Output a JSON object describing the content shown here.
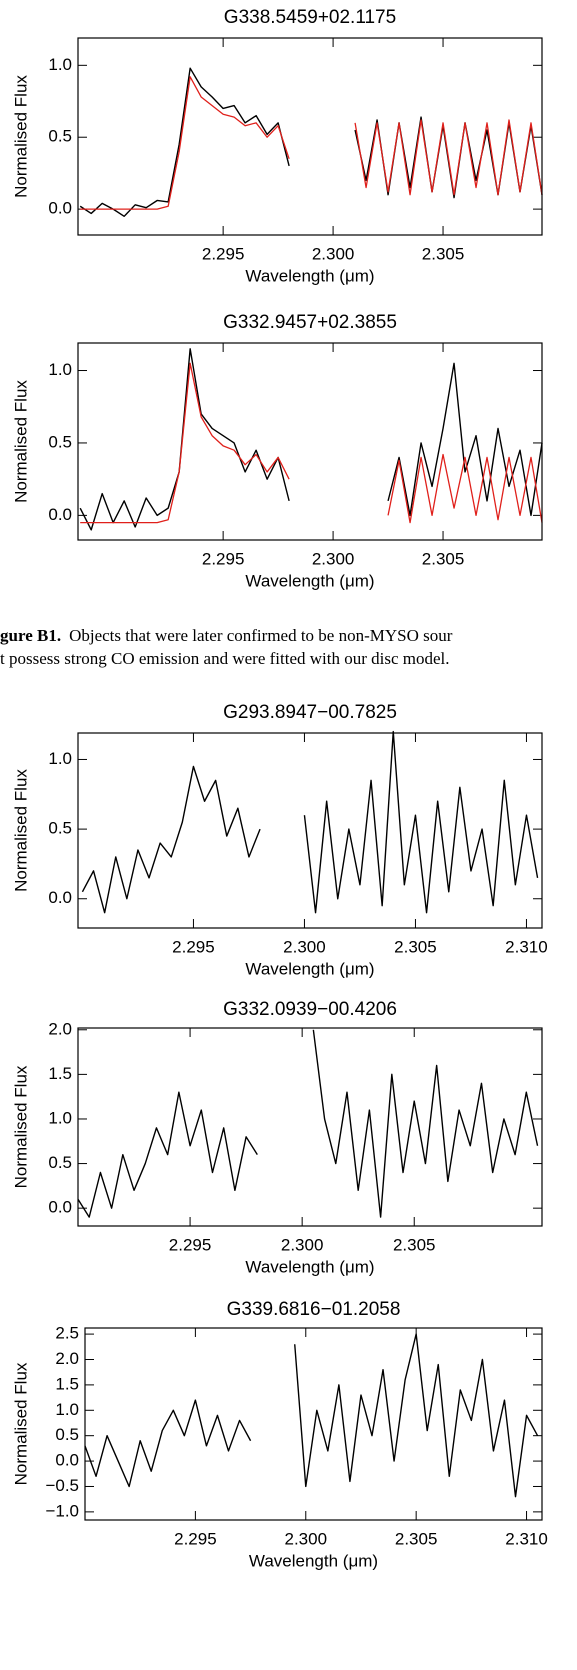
{
  "chart_data": [
    {
      "type": "line",
      "title": "G338.5459+02.1175",
      "xlabel": "Wavelength (μm)",
      "ylabel": "Normalised Flux",
      "x": [
        2.2885,
        2.289,
        2.2895,
        2.29,
        2.2905,
        2.291,
        2.2915,
        2.292,
        2.2925,
        2.293,
        2.2935,
        2.294,
        2.2945,
        2.295,
        2.2955,
        2.296,
        2.2965,
        2.297,
        2.2975,
        2.298,
        2.2985,
        2.299,
        2.2995,
        2.3,
        2.3005,
        2.301,
        2.3015,
        2.302,
        2.3025,
        2.303,
        2.3035,
        2.304,
        2.3045,
        2.305,
        2.3055,
        2.306,
        2.3065,
        2.307,
        2.3075,
        2.308,
        2.3085,
        2.309,
        2.3095
      ],
      "series": [
        {
          "color": "#000000",
          "values": [
            0.02,
            -0.03,
            0.04,
            0.0,
            -0.05,
            0.03,
            0.01,
            0.06,
            0.05,
            0.45,
            0.98,
            0.85,
            0.78,
            0.7,
            0.72,
            0.6,
            0.65,
            0.52,
            0.6,
            0.3,
            null,
            null,
            null,
            null,
            null,
            0.55,
            0.2,
            0.62,
            0.1,
            0.6,
            0.15,
            0.64,
            0.12,
            0.58,
            0.08,
            0.6,
            0.2,
            0.55,
            0.1,
            0.6,
            0.12,
            0.58,
            0.1
          ]
        },
        {
          "color": "#e0201b",
          "values": [
            0.0,
            0.0,
            0.0,
            0.0,
            0.0,
            0.0,
            0.0,
            0.0,
            0.02,
            0.4,
            0.92,
            0.78,
            0.72,
            0.66,
            0.64,
            0.58,
            0.6,
            0.5,
            0.58,
            0.35,
            null,
            null,
            null,
            null,
            null,
            0.6,
            0.15,
            0.6,
            0.12,
            0.6,
            0.1,
            0.62,
            0.12,
            0.6,
            0.1,
            0.6,
            0.15,
            0.6,
            0.1,
            0.62,
            0.12,
            0.6,
            0.1
          ]
        }
      ],
      "xlim": [
        2.2884,
        2.3095
      ],
      "ylim": [
        -0.18,
        1.19
      ],
      "xticks": [
        2.295,
        {
          "value": 2.3,
          "label": "2.300"
        },
        2.305
      ],
      "yticks": [
        {
          "value": 0,
          "label": "0.0"
        },
        0.5,
        {
          "value": 1,
          "label": "1.0"
        }
      ]
    },
    {
      "type": "line",
      "title": "G332.9457+02.3855",
      "xlabel": "Wavelength (μm)",
      "ylabel": "Normalised Flux",
      "x": [
        2.2885,
        2.289,
        2.2895,
        2.29,
        2.2905,
        2.291,
        2.2915,
        2.292,
        2.2925,
        2.293,
        2.2935,
        2.294,
        2.2945,
        2.295,
        2.2955,
        2.296,
        2.2965,
        2.297,
        2.2975,
        2.298,
        2.2985,
        2.299,
        2.2995,
        2.3,
        2.3005,
        2.301,
        2.3015,
        2.302,
        2.3025,
        2.303,
        2.3035,
        2.304,
        2.3045,
        2.305,
        2.3055,
        2.306,
        2.3065,
        2.307,
        2.3075,
        2.308,
        2.3085,
        2.309,
        2.3095
      ],
      "series": [
        {
          "color": "#000000",
          "values": [
            0.05,
            -0.1,
            0.15,
            -0.05,
            0.1,
            -0.08,
            0.12,
            0.0,
            0.05,
            0.3,
            1.15,
            0.7,
            0.6,
            0.55,
            0.5,
            0.3,
            0.45,
            0.25,
            0.4,
            0.1,
            null,
            null,
            null,
            null,
            null,
            null,
            null,
            null,
            0.1,
            0.4,
            0.0,
            0.5,
            0.2,
            0.6,
            1.05,
            0.3,
            0.55,
            0.1,
            0.6,
            0.2,
            0.45,
            0.0,
            0.5
          ]
        },
        {
          "color": "#e0201b",
          "values": [
            -0.05,
            -0.05,
            -0.05,
            -0.05,
            -0.05,
            -0.05,
            -0.05,
            -0.05,
            -0.03,
            0.3,
            1.05,
            0.68,
            0.55,
            0.48,
            0.45,
            0.35,
            0.42,
            0.3,
            0.4,
            0.25,
            null,
            null,
            null,
            null,
            null,
            null,
            null,
            null,
            0.0,
            0.38,
            -0.05,
            0.4,
            0.0,
            0.42,
            0.05,
            0.4,
            0.0,
            0.4,
            -0.03,
            0.4,
            0.0,
            0.4,
            -0.05
          ]
        }
      ],
      "xlim": [
        2.2884,
        2.3095
      ],
      "ylim": [
        -0.17,
        1.19
      ],
      "xticks": [
        2.295,
        {
          "value": 2.3,
          "label": "2.300"
        },
        2.305
      ],
      "yticks": [
        {
          "value": 0,
          "label": "0.0"
        },
        0.5,
        {
          "value": 1,
          "label": "1.0"
        }
      ]
    },
    {
      "type": "line",
      "title": "G293.8947−00.7825",
      "xlabel": "Wavelength (μm)",
      "ylabel": "Normalised Flux",
      "x": [
        2.29,
        2.2905,
        2.291,
        2.2915,
        2.292,
        2.2925,
        2.293,
        2.2935,
        2.294,
        2.2945,
        2.295,
        2.2955,
        2.296,
        2.2965,
        2.297,
        2.2975,
        2.298,
        2.2985,
        2.299,
        2.2995,
        2.3,
        2.3005,
        2.301,
        2.3015,
        2.302,
        2.3025,
        2.303,
        2.3035,
        2.304,
        2.3045,
        2.305,
        2.3055,
        2.306,
        2.3065,
        2.307,
        2.3075,
        2.308,
        2.3085,
        2.309,
        2.3095,
        2.31,
        2.3105
      ],
      "series": [
        {
          "color": "#000000",
          "values": [
            0.05,
            0.2,
            -0.1,
            0.3,
            0.0,
            0.35,
            0.15,
            0.4,
            0.3,
            0.55,
            0.95,
            0.7,
            0.85,
            0.45,
            0.65,
            0.3,
            0.5,
            null,
            null,
            null,
            0.6,
            -0.1,
            0.7,
            0.0,
            0.5,
            0.1,
            0.85,
            -0.05,
            1.2,
            0.1,
            0.6,
            -0.1,
            0.7,
            0.05,
            0.8,
            0.2,
            0.5,
            -0.05,
            0.85,
            0.1,
            0.6,
            0.15
          ]
        }
      ],
      "xlim": [
        2.2898,
        2.3107
      ],
      "ylim": [
        -0.21,
        1.19
      ],
      "xticks": [
        2.295,
        {
          "value": 2.3,
          "label": "2.300"
        },
        2.305,
        {
          "value": 2.31,
          "label": "2.310"
        }
      ],
      "yticks": [
        {
          "value": 0,
          "label": "0.0"
        },
        0.5,
        {
          "value": 1,
          "label": "1.0"
        }
      ]
    },
    {
      "type": "line",
      "title": "G332.0939−00.4206",
      "xlabel": "Wavelength (μm)",
      "ylabel": "Normalised Flux",
      "x": [
        2.29,
        2.2905,
        2.291,
        2.2915,
        2.292,
        2.2925,
        2.293,
        2.2935,
        2.294,
        2.2945,
        2.295,
        2.2955,
        2.296,
        2.2965,
        2.297,
        2.2975,
        2.298,
        2.2985,
        2.299,
        2.2995,
        2.3,
        2.3005,
        2.301,
        2.3015,
        2.302,
        2.3025,
        2.303,
        2.3035,
        2.304,
        2.3045,
        2.305,
        2.3055,
        2.306,
        2.3065,
        2.307,
        2.3075,
        2.308,
        2.3085,
        2.309,
        2.3095,
        2.31,
        2.3105
      ],
      "series": [
        {
          "color": "#000000",
          "values": [
            0.1,
            -0.1,
            0.4,
            0.0,
            0.6,
            0.2,
            0.5,
            0.9,
            0.6,
            1.3,
            0.7,
            1.1,
            0.4,
            0.9,
            0.2,
            0.8,
            0.6,
            null,
            null,
            null,
            null,
            2.0,
            1.0,
            0.5,
            1.3,
            0.2,
            1.1,
            -0.1,
            1.5,
            0.4,
            1.2,
            0.5,
            1.6,
            0.3,
            1.1,
            0.7,
            1.4,
            0.4,
            1.0,
            0.6,
            1.3,
            0.7
          ]
        }
      ],
      "xlim": [
        2.29,
        2.3107
      ],
      "ylim": [
        -0.2,
        2.02
      ],
      "xticks": [
        2.295,
        {
          "value": 2.3,
          "label": "2.300"
        },
        2.305
      ],
      "yticks": [
        {
          "value": 0,
          "label": "0.0"
        },
        0.5,
        {
          "value": 1,
          "label": "1.0"
        },
        1.5,
        {
          "value": 2,
          "label": "2.0"
        }
      ]
    },
    {
      "type": "line",
      "title": "G339.6816−01.2058",
      "xlabel": "Wavelength (μm)",
      "ylabel": "Normalised Flux",
      "x": [
        2.29,
        2.2905,
        2.291,
        2.2915,
        2.292,
        2.2925,
        2.293,
        2.2935,
        2.294,
        2.2945,
        2.295,
        2.2955,
        2.296,
        2.2965,
        2.297,
        2.2975,
        2.298,
        2.2985,
        2.299,
        2.2995,
        2.3,
        2.3005,
        2.301,
        2.3015,
        2.302,
        2.3025,
        2.303,
        2.3035,
        2.304,
        2.3045,
        2.305,
        2.3055,
        2.306,
        2.3065,
        2.307,
        2.3075,
        2.308,
        2.3085,
        2.309,
        2.3095,
        2.31,
        2.3105
      ],
      "series": [
        {
          "color": "#000000",
          "values": [
            0.3,
            -0.3,
            0.5,
            0.0,
            -0.5,
            0.4,
            -0.2,
            0.6,
            1.0,
            0.5,
            1.2,
            0.3,
            0.9,
            0.2,
            0.8,
            0.4,
            null,
            null,
            null,
            2.3,
            -0.5,
            1.0,
            0.2,
            1.5,
            -0.4,
            1.3,
            0.5,
            1.8,
            0.0,
            1.6,
            2.5,
            0.6,
            1.9,
            -0.3,
            1.4,
            0.8,
            2.0,
            0.2,
            1.2,
            -0.7,
            0.9,
            0.5
          ]
        }
      ],
      "xlim": [
        2.29,
        2.3107
      ],
      "ylim": [
        -1.16,
        2.62
      ],
      "xticks": [
        2.295,
        {
          "value": 2.3,
          "label": "2.300"
        },
        2.305,
        {
          "value": 2.31,
          "label": "2.310"
        }
      ],
      "yticks": [
        {
          "value": -1,
          "label": "−1.0"
        },
        {
          "value": -0.5,
          "label": "−0.5"
        },
        {
          "value": 0,
          "label": "0.0"
        },
        0.5,
        {
          "value": 1,
          "label": "1.0"
        },
        1.5,
        {
          "value": 2,
          "label": "2.0"
        },
        2.5
      ]
    }
  ],
  "caption": {
    "label": "gure B1.",
    "lines": [
      "Objects that were later confirmed to be non-MYSO sour",
      "t possess strong CO emission and were fitted with our disc model."
    ]
  }
}
